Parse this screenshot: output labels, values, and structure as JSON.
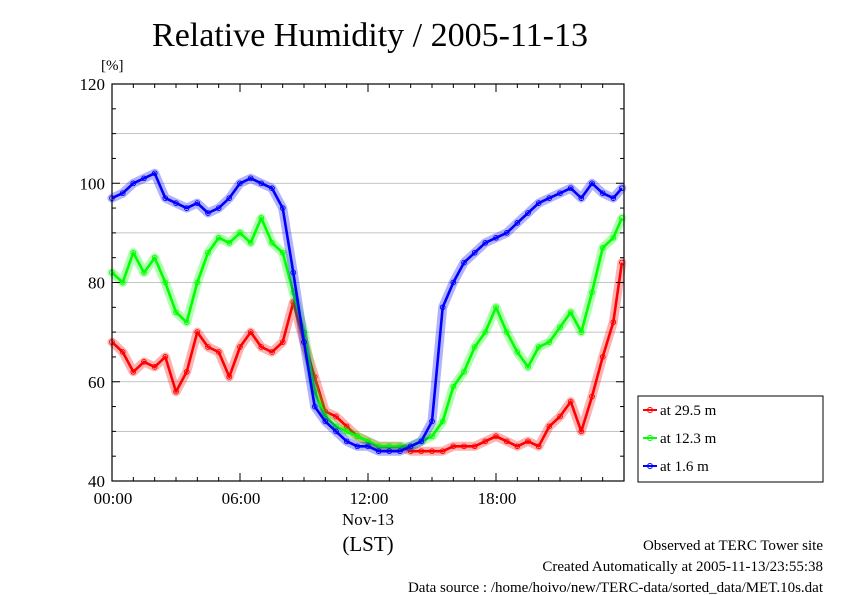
{
  "chart_data": {
    "type": "line",
    "title": "Relative Humidity / 2005-11-13",
    "ylabel": "[%]",
    "ylim": [
      40,
      120
    ],
    "yticks": [
      40,
      60,
      80,
      100,
      120
    ],
    "xlim_hours": [
      0,
      24
    ],
    "xticks": [
      {
        "hour": 0,
        "label": "00:00"
      },
      {
        "hour": 6,
        "label": "06:00"
      },
      {
        "hour": 12,
        "label": "12:00"
      },
      {
        "hour": 18,
        "label": "18:00"
      }
    ],
    "xdate_label": "Nov-13",
    "xunit_label": "(LST)",
    "grid": "horizontal",
    "legend_position": "right",
    "series": [
      {
        "name": "at 29.5 m",
        "color": "#ff0000",
        "x": [
          0,
          0.5,
          1,
          1.5,
          2,
          2.5,
          3,
          3.5,
          4,
          4.5,
          5,
          5.5,
          6,
          6.5,
          7,
          7.5,
          8,
          8.5,
          9,
          9.5,
          10,
          10.5,
          11,
          11.5,
          12,
          12.5,
          13,
          13.5,
          14,
          14.5,
          15,
          15.5,
          16,
          16.5,
          17,
          17.5,
          18,
          18.5,
          19,
          19.5,
          20,
          20.5,
          21,
          21.5,
          22,
          22.5,
          23,
          23.5,
          23.9
        ],
        "y": [
          68,
          66,
          62,
          64,
          63,
          65,
          58,
          62,
          70,
          67,
          66,
          61,
          67,
          70,
          67,
          66,
          68,
          76,
          68,
          61,
          54,
          53,
          51,
          49,
          48,
          47,
          47,
          47,
          46,
          46,
          46,
          46,
          47,
          47,
          47,
          48,
          49,
          48,
          47,
          48,
          47,
          51,
          53,
          56,
          50,
          57,
          65,
          72,
          84
        ]
      },
      {
        "name": "at 12.3 m",
        "color": "#00ff00",
        "x": [
          0,
          0.5,
          1,
          1.5,
          2,
          2.5,
          3,
          3.5,
          4,
          4.5,
          5,
          5.5,
          6,
          6.5,
          7,
          7.5,
          8,
          8.5,
          9,
          9.5,
          10,
          10.5,
          11,
          11.5,
          12,
          12.5,
          13,
          13.5,
          14,
          14.5,
          15,
          15.5,
          16,
          16.5,
          17,
          17.5,
          18,
          18.5,
          19,
          19.5,
          20,
          20.5,
          21,
          21.5,
          22,
          22.5,
          23,
          23.5,
          23.9
        ],
        "y": [
          82,
          80,
          86,
          82,
          85,
          80,
          74,
          72,
          80,
          86,
          89,
          88,
          90,
          88,
          93,
          88,
          86,
          78,
          70,
          58,
          53,
          51,
          50,
          49,
          48,
          47,
          47,
          47,
          47,
          48,
          49,
          52,
          59,
          62,
          67,
          70,
          75,
          70,
          66,
          63,
          67,
          68,
          71,
          74,
          70,
          78,
          87,
          89,
          93
        ]
      },
      {
        "name": "at 1.6 m",
        "color": "#0000ff",
        "x": [
          0,
          0.5,
          1,
          1.5,
          2,
          2.5,
          3,
          3.5,
          4,
          4.5,
          5,
          5.5,
          6,
          6.5,
          7,
          7.5,
          8,
          8.5,
          9,
          9.5,
          10,
          10.5,
          11,
          11.5,
          12,
          12.5,
          13,
          13.5,
          14,
          14.5,
          15,
          15.5,
          16,
          16.5,
          17,
          17.5,
          18,
          18.5,
          19,
          19.5,
          20,
          20.5,
          21,
          21.5,
          22,
          22.5,
          23,
          23.5,
          23.9
        ],
        "y": [
          97,
          98,
          100,
          101,
          102,
          97,
          96,
          95,
          96,
          94,
          95,
          97,
          100,
          101,
          100,
          99,
          95,
          82,
          68,
          55,
          52,
          50,
          48,
          47,
          47,
          46,
          46,
          46,
          47,
          48,
          52,
          75,
          80,
          84,
          86,
          88,
          89,
          90,
          92,
          94,
          96,
          97,
          98,
          99,
          97,
          100,
          98,
          97,
          99
        ]
      }
    ]
  },
  "footer": {
    "line1": "Observed at TERC Tower site",
    "line2": "Created Automatically at 2005-11-13/23:55:38",
    "line3": "Data source : /home/hoivo/new/TERC-data/sorted_data/MET.10s.dat"
  }
}
